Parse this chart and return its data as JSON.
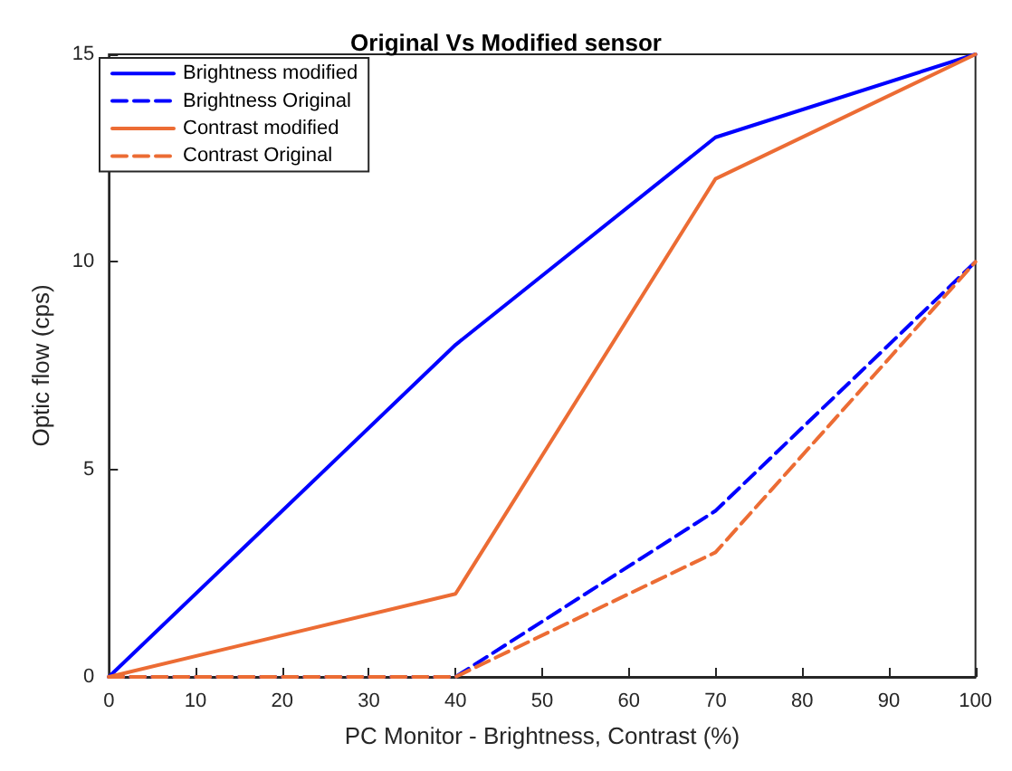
{
  "chart_data": {
    "type": "line",
    "title": "Original Vs Modified sensor",
    "xlabel": "PC Monitor - Brightness, Contrast (%)",
    "ylabel": "Optic flow (cps)",
    "x": [
      0,
      40,
      70,
      100
    ],
    "series": [
      {
        "name": "Brightness modified",
        "color": "#0000ff",
        "line_style": "solid",
        "values": [
          0,
          8,
          13,
          15
        ]
      },
      {
        "name": "Brightness Original",
        "color": "#0000ff",
        "line_style": "dashed",
        "values": [
          0,
          0,
          4,
          10
        ]
      },
      {
        "name": "Contrast modified",
        "color": "#ec6c34",
        "line_style": "solid",
        "values": [
          0,
          2,
          12,
          15
        ]
      },
      {
        "name": "Contrast Original",
        "color": "#ec6c34",
        "line_style": "dashed",
        "values": [
          0,
          0,
          3,
          10
        ]
      }
    ],
    "xlim": [
      0,
      100
    ],
    "xticks": [
      0,
      10,
      20,
      30,
      40,
      50,
      60,
      70,
      80,
      90,
      100
    ],
    "ylim": [
      0,
      15
    ],
    "yticks": [
      0,
      5,
      10,
      15
    ],
    "grid": false,
    "legend": "top left",
    "marker": "none"
  }
}
